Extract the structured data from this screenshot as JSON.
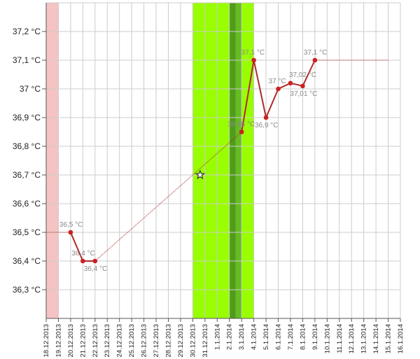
{
  "chart_data": {
    "type": "line",
    "title": "",
    "xlabel": "",
    "ylabel": "",
    "unit": "°C",
    "ylim": [
      36.2,
      37.3
    ],
    "y_ticks": [
      "36,3 °C",
      "36,4 °C",
      "36,5 °C",
      "36,6 °C",
      "36,7 °C",
      "36,8 °C",
      "36,9 °C",
      "37 °C",
      "37,1 °C",
      "37,2 °C"
    ],
    "x_ticks": [
      "18.12.2013",
      "19.12.2013",
      "20.12.2013",
      "21.12.2013",
      "22.12.2013",
      "23.12.2013",
      "24.12.2013",
      "25.12.2013",
      "26.12.2013",
      "27.12.2013",
      "28.12.2013",
      "29.12.2013",
      "30.12.2013",
      "31.12.2013",
      "1.1.2014",
      "2.1.2014",
      "3.1.2014",
      "4.1.2014",
      "5.1.2014",
      "6.1.2014",
      "7.1.2014",
      "8.1.2014",
      "9.1.2014",
      "10.1.2014",
      "11.1.2014",
      "12.1.2014",
      "13.1.2014",
      "14.1.2014",
      "15.1.2014",
      "16.1.2014"
    ],
    "grid": true,
    "colors": {
      "series": "#b02a2a",
      "point": "#cc1f1f",
      "label": "#8a8a8a",
      "band_pink": "#f5c3c3",
      "band_green": "#99ff00",
      "band_green_dark": "#66bb22",
      "band_green_darker": "#4f9c1c",
      "grid": "#cccccc"
    },
    "bands": [
      {
        "from": "18.12.2013",
        "to": "19.12.2013",
        "color": "band_pink"
      },
      {
        "from": "30.12.2013",
        "to": "4.1.2014",
        "color": "band_green"
      },
      {
        "from": "2.1.2014",
        "to": "3.1.2014",
        "color": "band_green_dark"
      },
      {
        "from": "2.1.2014",
        "to": "2.1.2014",
        "color": "band_green_darker"
      }
    ],
    "series": [
      {
        "points": [
          {
            "x": "20.12.2013",
            "y": 36.5,
            "label": "36,5 °C"
          },
          {
            "x": "21.12.2013",
            "y": 36.4,
            "label": "36,4 °C"
          },
          {
            "x": "22.12.2013",
            "y": 36.4,
            "label": "36,4 °C"
          },
          {
            "x": "3.1.2014",
            "y": 36.85,
            "label": "36,85 °C"
          },
          {
            "x": "4.1.2014",
            "y": 37.1,
            "label": "37,1 °C"
          },
          {
            "x": "5.1.2014",
            "y": 36.9,
            "label": "36,9 °C"
          },
          {
            "x": "6.1.2014",
            "y": 37.0,
            "label": "37 °C"
          },
          {
            "x": "7.1.2014",
            "y": 37.02,
            "label": "37,02 °C"
          },
          {
            "x": "8.1.2014",
            "y": 37.01,
            "label": "37,01 °C"
          },
          {
            "x": "9.1.2014",
            "y": 37.1,
            "label": "37,1 °C"
          }
        ],
        "line_segments": [
          [
            0,
            2
          ],
          [
            3,
            9
          ]
        ]
      }
    ],
    "interpolated": {
      "start": {
        "x": "18.12.2013",
        "y": 36.5
      },
      "end": {
        "x": "15.1.2014",
        "y": 37.1
      },
      "gap_from": 2,
      "gap_to": 3
    },
    "marker": {
      "x": "30.12.2013",
      "y": 36.7,
      "symbol": "star"
    }
  }
}
